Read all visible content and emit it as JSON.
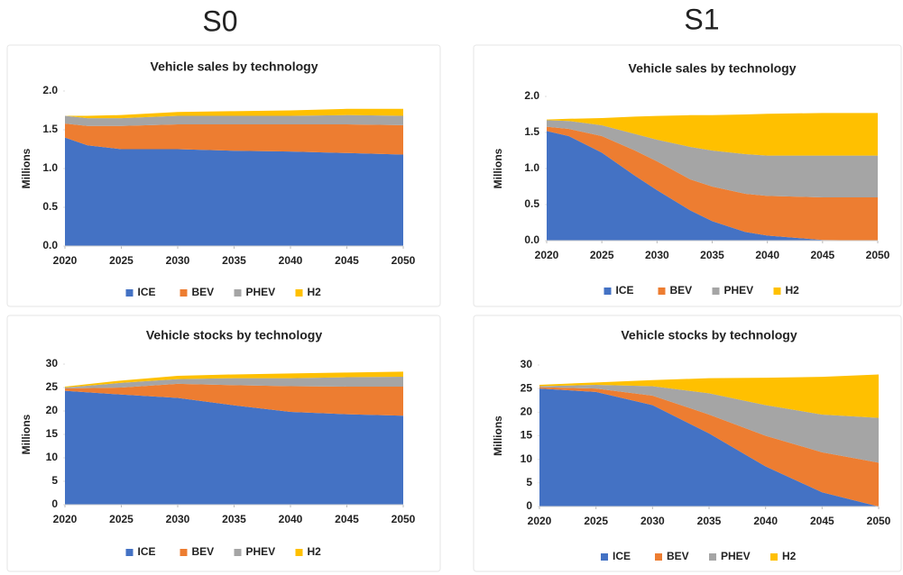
{
  "column_titles": [
    "S0",
    "S1"
  ],
  "chart_data": [
    {
      "type": "stacked_area",
      "title": "Vehicle sales by technology",
      "ylabel": "Millions",
      "x": [
        2020,
        2022,
        2025,
        2030,
        2035,
        2040,
        2045,
        2050
      ],
      "xlim": [
        2020,
        2050
      ],
      "xticks": [
        2020,
        2025,
        2030,
        2035,
        2040,
        2045,
        2050
      ],
      "ylim": [
        0,
        2
      ],
      "yticks": [
        {
          "value": 0,
          "label": "0.0"
        },
        0.5,
        {
          "value": 1,
          "label": "1.0"
        },
        1.5,
        {
          "value": 2,
          "label": "2.0"
        }
      ],
      "legend": "bottom",
      "series": [
        {
          "name": "ICE",
          "color": "#4472c4",
          "values": [
            1.4,
            1.3,
            1.25,
            1.25,
            1.23,
            1.22,
            1.2,
            1.18
          ]
        },
        {
          "name": "BEV",
          "color": "#ed7d31",
          "values": [
            0.18,
            0.25,
            0.3,
            0.32,
            0.34,
            0.35,
            0.37,
            0.38
          ]
        },
        {
          "name": "PHEV",
          "color": "#a5a5a5",
          "values": [
            0.1,
            0.1,
            0.1,
            0.11,
            0.11,
            0.11,
            0.12,
            0.12
          ]
        },
        {
          "name": "H2",
          "color": "#ffc000",
          "values": [
            0.0,
            0.03,
            0.04,
            0.05,
            0.06,
            0.07,
            0.08,
            0.09
          ]
        }
      ]
    },
    {
      "type": "stacked_area",
      "title": "Vehicle sales by technology",
      "ylabel": "Millions",
      "x": [
        2020,
        2022,
        2025,
        2028,
        2030,
        2033,
        2035,
        2038,
        2040,
        2045,
        2050
      ],
      "xlim": [
        2020,
        2050
      ],
      "xticks": [
        2020,
        2025,
        2030,
        2035,
        2040,
        2045,
        2050
      ],
      "ylim": [
        0,
        2
      ],
      "yticks": [
        {
          "value": 0,
          "label": "0.0"
        },
        0.5,
        {
          "value": 1,
          "label": "1.0"
        },
        1.5,
        {
          "value": 2,
          "label": "2.0"
        }
      ],
      "legend": "bottom",
      "series": [
        {
          "name": "ICE",
          "color": "#4472c4",
          "values": [
            1.52,
            1.45,
            1.22,
            0.9,
            0.7,
            0.42,
            0.27,
            0.12,
            0.07,
            0.01,
            0.0
          ]
        },
        {
          "name": "BEV",
          "color": "#ed7d31",
          "values": [
            0.06,
            0.1,
            0.23,
            0.35,
            0.4,
            0.43,
            0.48,
            0.53,
            0.55,
            0.59,
            0.6
          ]
        },
        {
          "name": "PHEV",
          "color": "#a5a5a5",
          "values": [
            0.09,
            0.11,
            0.15,
            0.23,
            0.3,
            0.45,
            0.5,
            0.55,
            0.56,
            0.58,
            0.58
          ]
        },
        {
          "name": "H2",
          "color": "#ffc000",
          "values": [
            0.01,
            0.03,
            0.1,
            0.24,
            0.33,
            0.44,
            0.49,
            0.55,
            0.58,
            0.59,
            0.59
          ]
        }
      ]
    },
    {
      "type": "stacked_area",
      "title": "Vehicle stocks by technology",
      "ylabel": "Millions",
      "x": [
        2020,
        2025,
        2030,
        2035,
        2040,
        2045,
        2050
      ],
      "xlim": [
        2020,
        2050
      ],
      "xticks": [
        2020,
        2025,
        2030,
        2035,
        2040,
        2045,
        2050
      ],
      "ylim": [
        0,
        30
      ],
      "yticks": [
        0,
        5,
        10,
        15,
        20,
        25,
        30
      ],
      "legend": "bottom",
      "series": [
        {
          "name": "ICE",
          "color": "#4472c4",
          "values": [
            24.3,
            23.5,
            22.8,
            21.2,
            19.8,
            19.3,
            19.0
          ]
        },
        {
          "name": "BEV",
          "color": "#ed7d31",
          "values": [
            0.5,
            1.5,
            3.0,
            4.3,
            5.5,
            5.9,
            6.2
          ]
        },
        {
          "name": "PHEV",
          "color": "#a5a5a5",
          "values": [
            0.2,
            1.0,
            1.0,
            1.5,
            1.7,
            2.0,
            2.1
          ]
        },
        {
          "name": "H2",
          "color": "#ffc000",
          "values": [
            0.2,
            0.5,
            0.7,
            0.8,
            1.0,
            1.0,
            1.1
          ]
        }
      ]
    },
    {
      "type": "stacked_area",
      "title": "Vehicle stocks by technology",
      "ylabel": "Millions",
      "x": [
        2020,
        2025,
        2030,
        2035,
        2040,
        2045,
        2050
      ],
      "xlim": [
        2020,
        2050
      ],
      "xticks": [
        2020,
        2025,
        2030,
        2035,
        2040,
        2045,
        2050
      ],
      "ylim": [
        0,
        30
      ],
      "yticks": [
        0,
        5,
        10,
        15,
        20,
        25,
        30
      ],
      "legend": "bottom",
      "series": [
        {
          "name": "ICE",
          "color": "#4472c4",
          "values": [
            25.0,
            24.3,
            21.5,
            15.5,
            8.5,
            3.0,
            0.0
          ]
        },
        {
          "name": "BEV",
          "color": "#ed7d31",
          "values": [
            0.3,
            0.7,
            2.0,
            4.0,
            6.5,
            8.5,
            9.3
          ]
        },
        {
          "name": "PHEV",
          "color": "#a5a5a5",
          "values": [
            0.2,
            0.8,
            2.0,
            4.5,
            6.5,
            8.0,
            9.5
          ]
        },
        {
          "name": "H2",
          "color": "#ffc000",
          "values": [
            0.3,
            0.5,
            1.3,
            3.2,
            5.8,
            8.0,
            9.2
          ]
        }
      ]
    }
  ]
}
